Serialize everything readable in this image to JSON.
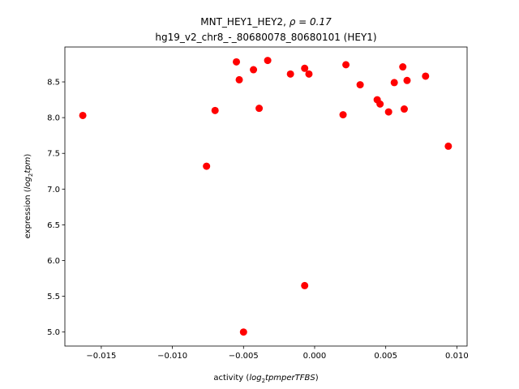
{
  "chart_data": {
    "type": "scatter",
    "title_line1_prefix": "MNT_HEY1_HEY2, ",
    "title_rho": "ρ = 0.17",
    "title_line2": "hg19_v2_chr8_-_80680078_80680101 (HEY1)",
    "xlabel": {
      "pre": "activity (",
      "log": "log",
      "sub": "2",
      "post_math": "tpmperTFBS",
      "end": ")"
    },
    "ylabel": {
      "pre": "expression (",
      "log": "log",
      "sub": "2",
      "post_math": "tpm",
      "end": ")"
    },
    "xlim": [
      -0.01756,
      0.01072
    ],
    "ylim": [
      4.804,
      8.988
    ],
    "xticks": [
      -0.015,
      -0.01,
      -0.005,
      0.0,
      0.005,
      0.01
    ],
    "xtick_labels": [
      "−0.015",
      "−0.010",
      "−0.005",
      "0.000",
      "0.005",
      "0.010"
    ],
    "yticks": [
      5.0,
      5.5,
      6.0,
      6.5,
      7.0,
      7.5,
      8.0,
      8.5
    ],
    "ytick_labels": [
      "5.0",
      "5.5",
      "6.0",
      "6.5",
      "7.0",
      "7.5",
      "8.0",
      "8.5"
    ],
    "marker_color": "#ff0000",
    "points": [
      [
        -0.0163,
        8.03
      ],
      [
        -0.0076,
        7.32
      ],
      [
        -0.007,
        8.1
      ],
      [
        -0.0055,
        8.78
      ],
      [
        -0.0053,
        8.53
      ],
      [
        -0.005,
        5.0
      ],
      [
        -0.0043,
        8.67
      ],
      [
        -0.0039,
        8.13
      ],
      [
        -0.0033,
        8.8
      ],
      [
        -0.0017,
        8.61
      ],
      [
        -0.0007,
        8.69
      ],
      [
        -0.0007,
        5.65
      ],
      [
        -0.0004,
        8.61
      ],
      [
        0.002,
        8.04
      ],
      [
        0.0022,
        8.74
      ],
      [
        0.0032,
        8.46
      ],
      [
        0.0044,
        8.25
      ],
      [
        0.0046,
        8.19
      ],
      [
        0.0052,
        8.08
      ],
      [
        0.0056,
        8.49
      ],
      [
        0.0062,
        8.71
      ],
      [
        0.0063,
        8.12
      ],
      [
        0.0065,
        8.52
      ],
      [
        0.0078,
        8.58
      ],
      [
        0.0094,
        7.6
      ]
    ]
  }
}
